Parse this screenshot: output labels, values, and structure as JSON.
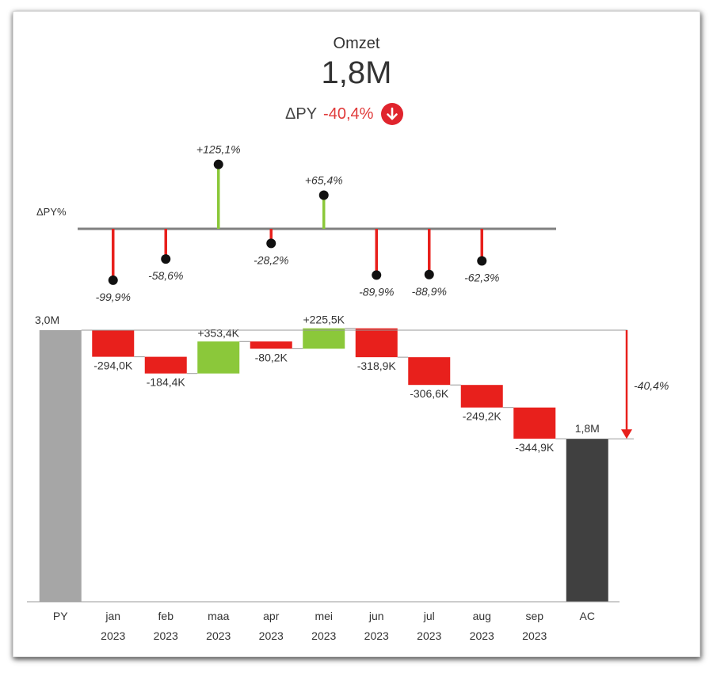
{
  "kpi": {
    "title": "Omzet",
    "value": "1,8M",
    "delta_label": "ΔPY",
    "delta_value": "-40,4%",
    "delta_icon": "arrow-down-circle-icon"
  },
  "colors": {
    "negative": "#e8201c",
    "positive": "#8bc83a",
    "py_bar": "#a6a6a6",
    "ac_bar": "#404040",
    "axis": "#808080"
  },
  "chart_data": [
    {
      "type": "lollipop",
      "name": "delta-py-percent",
      "ylabel": "ΔPY%",
      "categories": [
        "jan 2023",
        "feb 2023",
        "maa 2023",
        "apr 2023",
        "mei 2023",
        "jun 2023",
        "jul 2023",
        "aug 2023",
        "sep 2023"
      ],
      "values": [
        -99.9,
        -58.6,
        125.1,
        -28.2,
        65.4,
        -89.9,
        -88.9,
        -62.3,
        null
      ],
      "labels": [
        "-99,9%",
        "-58,6%",
        "+125,1%",
        "-28,2%",
        "+65,4%",
        "-89,9%",
        "-88,9%",
        "-62,3%",
        ""
      ]
    },
    {
      "type": "waterfall",
      "name": "omzet-waterfall",
      "x_labels": [
        {
          "line1": "PY",
          "line2": ""
        },
        {
          "line1": "jan",
          "line2": "2023"
        },
        {
          "line1": "feb",
          "line2": "2023"
        },
        {
          "line1": "maa",
          "line2": "2023"
        },
        {
          "line1": "apr",
          "line2": "2023"
        },
        {
          "line1": "mei",
          "line2": "2023"
        },
        {
          "line1": "jun",
          "line2": "2023"
        },
        {
          "line1": "jul",
          "line2": "2023"
        },
        {
          "line1": "aug",
          "line2": "2023"
        },
        {
          "line1": "sep",
          "line2": "2023"
        },
        {
          "line1": "AC",
          "line2": ""
        }
      ],
      "start": {
        "label": "PY",
        "value": 3.0,
        "text": "3,0M"
      },
      "steps": [
        {
          "label": "jan 2023",
          "value": -0.294,
          "text": "-294,0K"
        },
        {
          "label": "feb 2023",
          "value": -0.1844,
          "text": "-184,4K"
        },
        {
          "label": "maa 2023",
          "value": 0.3534,
          "text": "+353,4K"
        },
        {
          "label": "apr 2023",
          "value": -0.0802,
          "text": "-80,2K"
        },
        {
          "label": "mei 2023",
          "value": 0.2255,
          "text": "+225,5K"
        },
        {
          "label": "jun 2023",
          "value": -0.3189,
          "text": "-318,9K"
        },
        {
          "label": "jul 2023",
          "value": -0.3066,
          "text": "-306,6K"
        },
        {
          "label": "aug 2023",
          "value": -0.2492,
          "text": "-249,2K"
        },
        {
          "label": "sep 2023",
          "value": -0.3449,
          "text": "-344,9K"
        }
      ],
      "end": {
        "label": "AC",
        "value": 1.8,
        "text": "1,8M"
      },
      "total_delta_text": "-40,4%",
      "unit": "M"
    }
  ]
}
